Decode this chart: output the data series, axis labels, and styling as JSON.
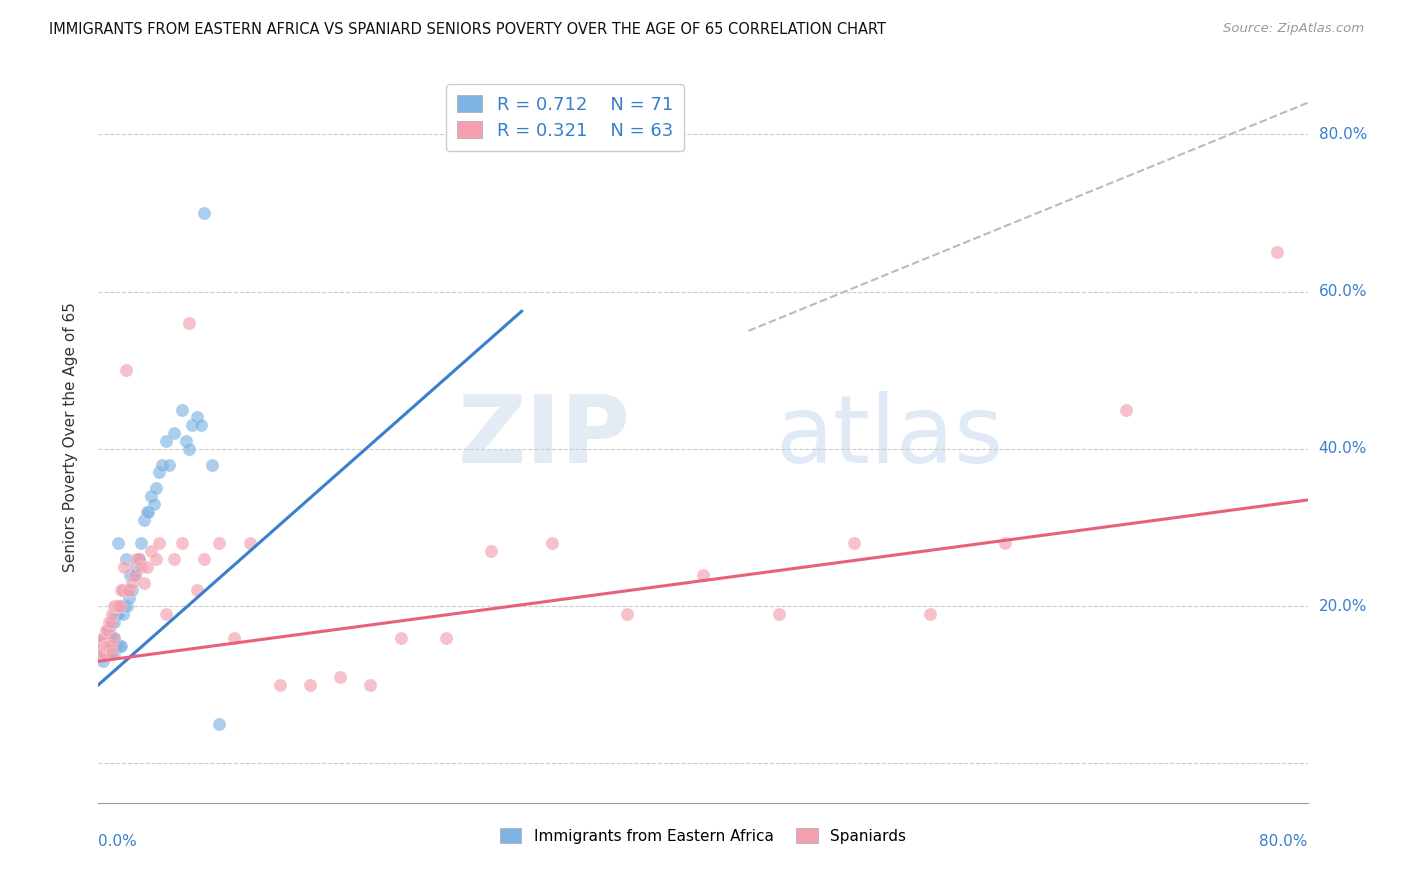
{
  "title": "IMMIGRANTS FROM EASTERN AFRICA VS SPANIARD SENIORS POVERTY OVER THE AGE OF 65 CORRELATION CHART",
  "source": "Source: ZipAtlas.com",
  "ylabel": "Seniors Poverty Over the Age of 65",
  "xlim": [
    0.0,
    0.8
  ],
  "ylim": [
    -0.05,
    0.88
  ],
  "ytick_vals": [
    0.0,
    0.2,
    0.4,
    0.6,
    0.8
  ],
  "ytick_labels_right": [
    "0.0%",
    "20.0%",
    "40.0%",
    "60.0%",
    "80.0%"
  ],
  "xtick_labels": [
    "0.0%",
    "80.0%"
  ],
  "blue_color": "#7EB4E3",
  "pink_color": "#F4A0B0",
  "blue_line_color": "#3A7FCC",
  "pink_line_color": "#E8607A",
  "diag_line_color": "#BBBBBB",
  "legend_r1": "0.712",
  "legend_n1": "71",
  "legend_r2": "0.321",
  "legend_n2": "63",
  "legend_label1": "Immigrants from Eastern Africa",
  "legend_label2": "Spaniards",
  "watermark_zip": "ZIP",
  "watermark_atlas": "atlas",
  "blue_line_x0": 0.0,
  "blue_line_x1": 0.28,
  "blue_line_y0": 0.1,
  "blue_line_y1": 0.575,
  "pink_line_x0": 0.0,
  "pink_line_x1": 0.8,
  "pink_line_y0": 0.13,
  "pink_line_y1": 0.335,
  "diag_line_x0": 0.43,
  "diag_line_x1": 0.8,
  "diag_line_y0": 0.55,
  "diag_line_y1": 0.84,
  "blue_scatter_x": [
    0.001,
    0.002,
    0.002,
    0.003,
    0.003,
    0.003,
    0.004,
    0.004,
    0.004,
    0.005,
    0.005,
    0.005,
    0.006,
    0.006,
    0.006,
    0.007,
    0.007,
    0.007,
    0.008,
    0.008,
    0.008,
    0.009,
    0.009,
    0.009,
    0.01,
    0.01,
    0.01,
    0.011,
    0.011,
    0.012,
    0.012,
    0.013,
    0.013,
    0.014,
    0.015,
    0.015,
    0.016,
    0.016,
    0.017,
    0.018,
    0.018,
    0.019,
    0.02,
    0.021,
    0.022,
    0.023,
    0.024,
    0.025,
    0.026,
    0.027,
    0.028,
    0.03,
    0.032,
    0.033,
    0.035,
    0.037,
    0.038,
    0.04,
    0.042,
    0.045,
    0.047,
    0.05,
    0.055,
    0.058,
    0.06,
    0.062,
    0.065,
    0.068,
    0.07,
    0.075,
    0.08
  ],
  "blue_scatter_y": [
    0.14,
    0.14,
    0.15,
    0.13,
    0.15,
    0.16,
    0.14,
    0.15,
    0.16,
    0.14,
    0.15,
    0.16,
    0.14,
    0.15,
    0.17,
    0.14,
    0.16,
    0.17,
    0.14,
    0.15,
    0.16,
    0.15,
    0.16,
    0.18,
    0.14,
    0.16,
    0.18,
    0.15,
    0.19,
    0.15,
    0.19,
    0.19,
    0.28,
    0.15,
    0.15,
    0.2,
    0.19,
    0.22,
    0.2,
    0.22,
    0.26,
    0.2,
    0.21,
    0.24,
    0.22,
    0.24,
    0.24,
    0.25,
    0.26,
    0.26,
    0.28,
    0.31,
    0.32,
    0.32,
    0.34,
    0.33,
    0.35,
    0.37,
    0.38,
    0.41,
    0.38,
    0.42,
    0.45,
    0.41,
    0.4,
    0.43,
    0.44,
    0.43,
    0.7,
    0.38,
    0.05
  ],
  "pink_scatter_x": [
    0.001,
    0.002,
    0.003,
    0.003,
    0.004,
    0.004,
    0.005,
    0.005,
    0.006,
    0.006,
    0.007,
    0.007,
    0.008,
    0.008,
    0.009,
    0.009,
    0.01,
    0.01,
    0.011,
    0.012,
    0.013,
    0.014,
    0.015,
    0.016,
    0.017,
    0.018,
    0.019,
    0.02,
    0.022,
    0.024,
    0.025,
    0.027,
    0.028,
    0.03,
    0.032,
    0.035,
    0.038,
    0.04,
    0.045,
    0.05,
    0.055,
    0.06,
    0.065,
    0.07,
    0.08,
    0.09,
    0.1,
    0.12,
    0.14,
    0.16,
    0.18,
    0.2,
    0.23,
    0.26,
    0.3,
    0.35,
    0.4,
    0.45,
    0.5,
    0.55,
    0.6,
    0.68,
    0.78
  ],
  "pink_scatter_y": [
    0.14,
    0.15,
    0.14,
    0.16,
    0.14,
    0.16,
    0.15,
    0.17,
    0.15,
    0.17,
    0.15,
    0.18,
    0.15,
    0.18,
    0.14,
    0.19,
    0.16,
    0.2,
    0.2,
    0.2,
    0.2,
    0.2,
    0.22,
    0.22,
    0.25,
    0.5,
    0.22,
    0.22,
    0.23,
    0.24,
    0.26,
    0.26,
    0.25,
    0.23,
    0.25,
    0.27,
    0.26,
    0.28,
    0.19,
    0.26,
    0.28,
    0.56,
    0.22,
    0.26,
    0.28,
    0.16,
    0.28,
    0.1,
    0.1,
    0.11,
    0.1,
    0.16,
    0.16,
    0.27,
    0.28,
    0.19,
    0.24,
    0.19,
    0.28,
    0.19,
    0.28,
    0.45,
    0.65
  ]
}
